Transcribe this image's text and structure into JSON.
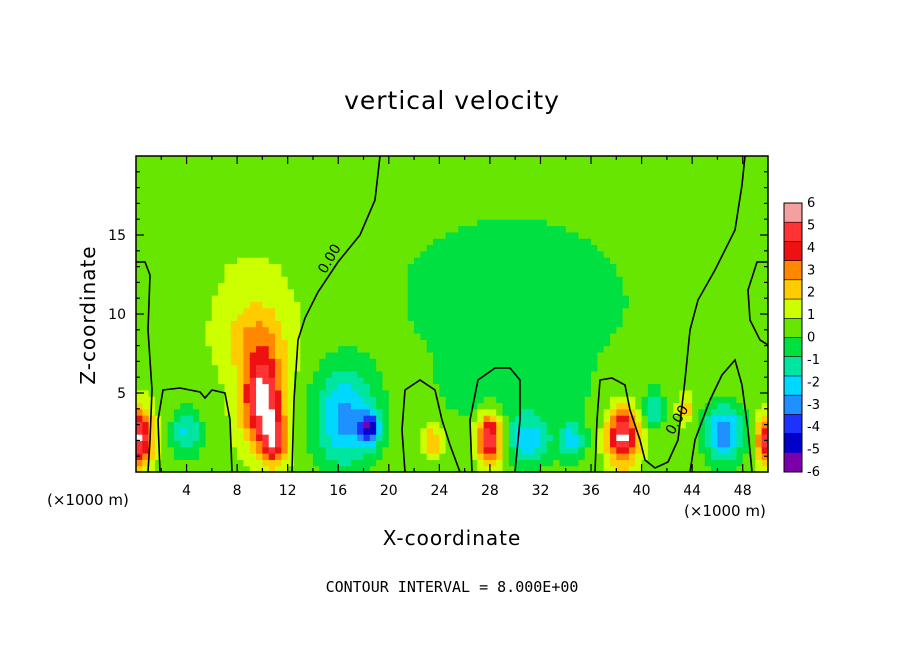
{
  "chart_data": {
    "type": "heatmap",
    "title": "vertical velocity",
    "xlabel": "X-coordinate",
    "ylabel": "Z-coordinate",
    "x_unit_label": "(×1000 m)",
    "x_unit_label_right": "(×1000 m)",
    "note": "CONTOUR INTERVAL = 8.000E+00",
    "xlim": [
      0,
      50
    ],
    "ylim": [
      0,
      20
    ],
    "x_ticks": [
      4,
      8,
      12,
      16,
      20,
      24,
      28,
      32,
      36,
      40,
      44,
      48
    ],
    "y_ticks": [
      5,
      10,
      15
    ],
    "contour_labels": [
      {
        "text": "0.00",
        "x": 15,
        "y": 12.5
      },
      {
        "text": "0.00",
        "x": 42.5,
        "y": 2.3
      }
    ],
    "colorbar": {
      "levels": [
        6,
        5,
        4,
        3,
        2,
        1,
        0,
        -1,
        -2,
        -3,
        -4,
        -5,
        -6
      ],
      "colors": [
        "#f5a0a0",
        "#ff3333",
        "#ee1111",
        "#ff8800",
        "#ffcc00",
        "#ccff00",
        "#66e600",
        "#00e040",
        "#00e6a0",
        "#00d8ff",
        "#1e90ff",
        "#1e32ff",
        "#0000c8",
        "#7a00aa"
      ]
    },
    "features": [
      {
        "x": 0.3,
        "z": 2.2,
        "v": 5.5,
        "rx": 1.0,
        "rz": 1.8
      },
      {
        "x": 4.0,
        "z": 2.5,
        "v": -2.8,
        "rx": 1.2,
        "rz": 1.5
      },
      {
        "x": 10.0,
        "z": 4.5,
        "v": 5.8,
        "rx": 1.6,
        "rz": 2.8
      },
      {
        "x": 9.5,
        "z": 8.5,
        "v": 2.2,
        "rx": 2.5,
        "rz": 2.5
      },
      {
        "x": 11.0,
        "z": 2.0,
        "v": 4.0,
        "rx": 1.0,
        "rz": 1.5
      },
      {
        "x": 16.5,
        "z": 3.5,
        "v": -4.0,
        "rx": 2.4,
        "rz": 3.2
      },
      {
        "x": 18.5,
        "z": 2.8,
        "v": -5.0,
        "rx": 0.8,
        "rz": 1.0
      },
      {
        "x": 23.5,
        "z": 2.0,
        "v": 2.5,
        "rx": 0.9,
        "rz": 1.0
      },
      {
        "x": 28.0,
        "z": 2.2,
        "v": 5.8,
        "rx": 1.0,
        "rz": 1.7
      },
      {
        "x": 31.0,
        "z": 2.0,
        "v": -3.0,
        "rx": 1.8,
        "rz": 1.5
      },
      {
        "x": 34.5,
        "z": 2.0,
        "v": -3.0,
        "rx": 1.0,
        "rz": 1.2
      },
      {
        "x": 38.5,
        "z": 2.3,
        "v": 5.8,
        "rx": 1.2,
        "rz": 1.8
      },
      {
        "x": 41.0,
        "z": 4.0,
        "v": -2.5,
        "rx": 0.8,
        "rz": 1.2
      },
      {
        "x": 43.5,
        "z": 4.0,
        "v": 2.5,
        "rx": 0.6,
        "rz": 0.8
      },
      {
        "x": 46.5,
        "z": 2.5,
        "v": -4.5,
        "rx": 1.6,
        "rz": 1.8
      },
      {
        "x": 49.8,
        "z": 2.0,
        "v": 4.5,
        "rx": 0.8,
        "rz": 1.5
      },
      {
        "x": 31.0,
        "z": 11.0,
        "v": -1.2,
        "rx": 10.0,
        "rz": 4.5
      },
      {
        "x": 30.0,
        "z": 5.0,
        "v": -1.0,
        "rx": 6.0,
        "rz": 2.5
      }
    ]
  }
}
